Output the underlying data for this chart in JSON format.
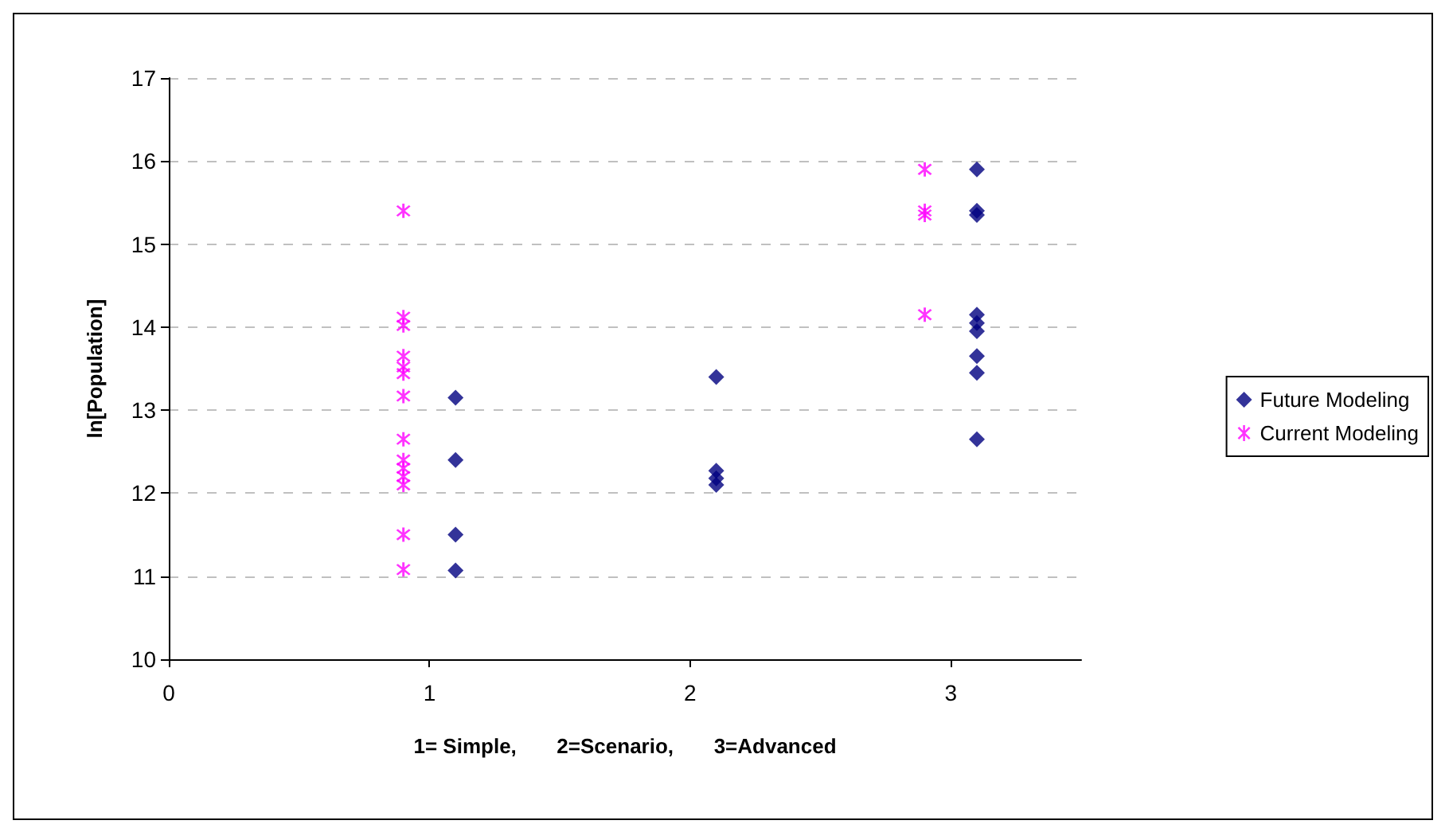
{
  "chart_data": {
    "type": "scatter",
    "xlabel": "1= Simple,       2=Scenario,       3=Advanced",
    "ylabel": "ln[Population]",
    "xlim": [
      0,
      3.5
    ],
    "xticks": [
      0,
      1,
      2,
      3
    ],
    "ylim": [
      10,
      17
    ],
    "yticks": [
      10,
      11,
      12,
      13,
      14,
      15,
      16,
      17
    ],
    "grid": "y",
    "legend": "right",
    "series": [
      {
        "name": "Future Modeling",
        "color": "#000080",
        "marker": "diamond",
        "x": [
          1.1,
          1.1,
          1.1,
          1.1,
          2.1,
          2.1,
          2.1,
          2.1,
          3.1,
          3.1,
          3.1,
          3.1,
          3.1,
          3.1,
          3.1,
          3.1,
          3.1
        ],
        "values": [
          13.15,
          12.4,
          11.5,
          11.07,
          13.4,
          12.27,
          12.18,
          12.1,
          15.9,
          15.4,
          15.35,
          14.15,
          14.05,
          13.95,
          13.65,
          13.45,
          12.65
        ]
      },
      {
        "name": "Current Modeling",
        "color": "#ff00ff",
        "marker": "cross",
        "x": [
          0.9,
          0.9,
          0.9,
          0.9,
          0.9,
          0.9,
          0.9,
          0.9,
          0.9,
          0.9,
          0.9,
          0.9,
          0.9,
          0.9,
          2.9,
          2.9,
          2.9,
          2.9
        ],
        "values": [
          15.4,
          14.12,
          14.02,
          13.65,
          13.52,
          13.44,
          13.17,
          12.65,
          12.4,
          12.3,
          12.2,
          12.1,
          11.5,
          11.08,
          15.9,
          15.4,
          15.35,
          14.15
        ]
      }
    ]
  }
}
